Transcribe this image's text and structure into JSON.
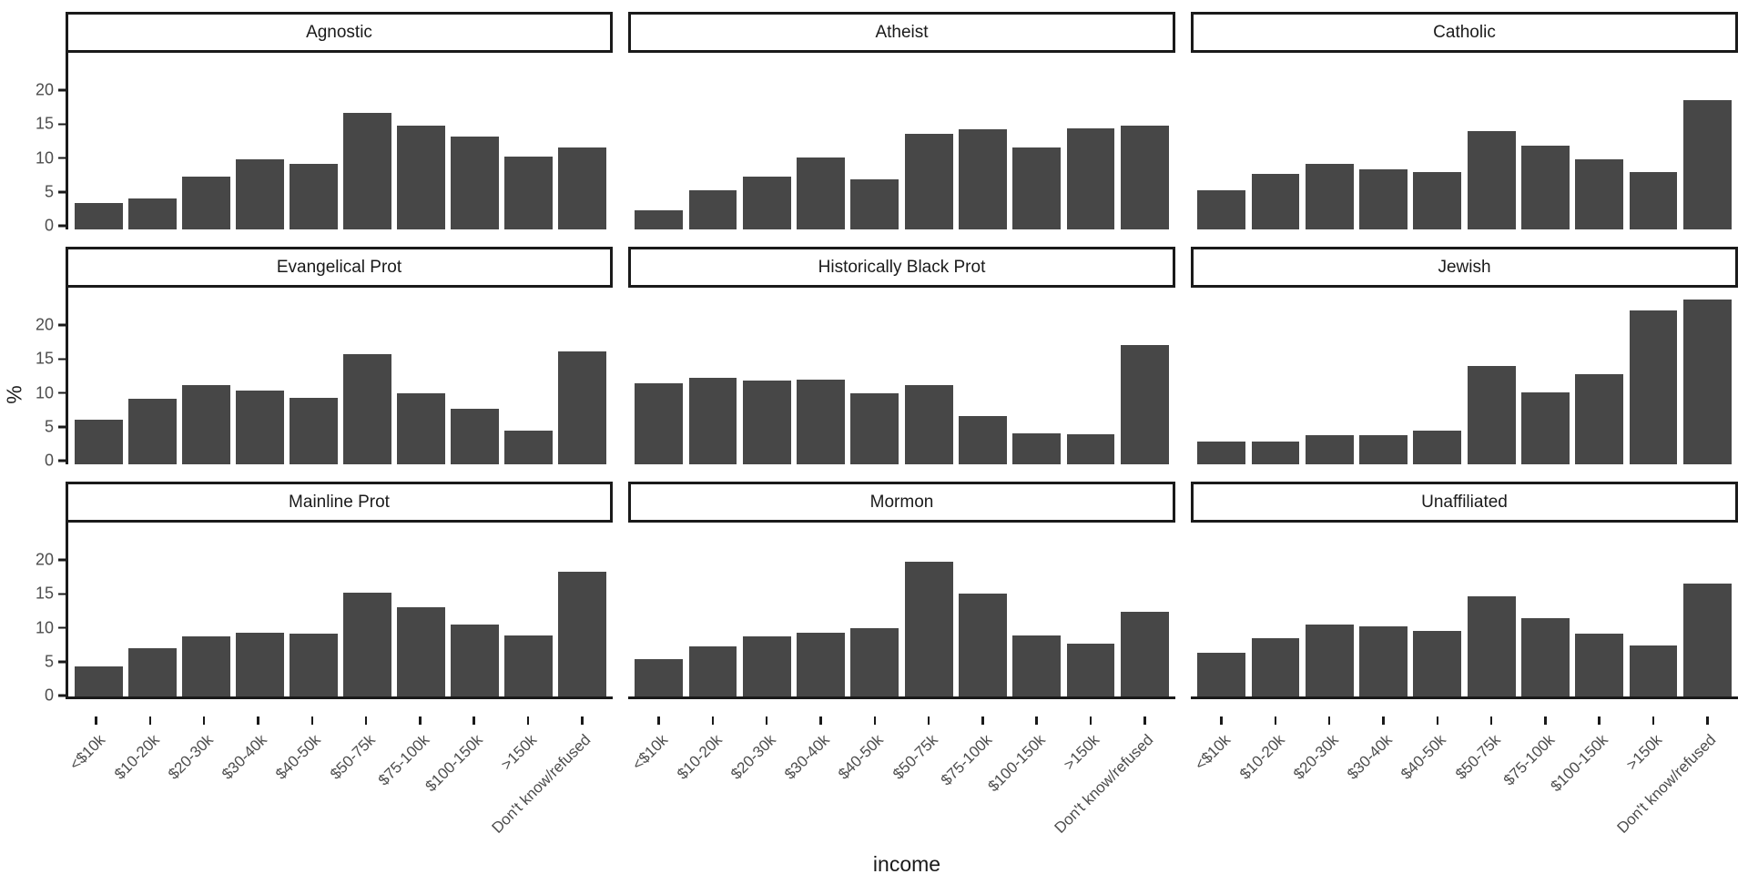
{
  "chart_data": {
    "type": "bar",
    "title": "",
    "xlabel": "income",
    "ylabel": "%",
    "categories": [
      "<$10k",
      "$10-20k",
      "$20-30k",
      "$30-40k",
      "$40-50k",
      "$50-75k",
      "$75-100k",
      "$100-150k",
      ">150k",
      "Don't know/refused"
    ],
    "yticks": [
      0,
      5,
      10,
      15,
      20
    ],
    "ylim": [
      0,
      25.5
    ],
    "grid": "off",
    "legend": "none",
    "facet_layout": {
      "rows": 3,
      "cols": 3
    },
    "bar_color": "#474747",
    "axis_color": "#1a1a1a",
    "tick_text_color": "#4d4d4d",
    "facets": [
      {
        "name": "Agnostic",
        "values": [
          3.3,
          4.1,
          7.3,
          9.8,
          9.2,
          16.6,
          14.8,
          13.2,
          10.2,
          11.6
        ]
      },
      {
        "name": "Atheist",
        "values": [
          2.3,
          5.2,
          7.2,
          10.1,
          6.8,
          13.6,
          14.2,
          11.5,
          14.4,
          14.8
        ]
      },
      {
        "name": "Catholic",
        "values": [
          5.2,
          7.7,
          9.1,
          8.3,
          7.9,
          13.9,
          11.8,
          9.8,
          7.9,
          18.5
        ]
      },
      {
        "name": "Evangelical Prot",
        "values": [
          6.1,
          9.2,
          11.2,
          10.4,
          9.3,
          15.7,
          10.0,
          7.6,
          4.4,
          16.1
        ]
      },
      {
        "name": "Historically Black Prot",
        "values": [
          11.4,
          12.2,
          11.8,
          11.9,
          9.9,
          11.2,
          6.6,
          4.1,
          3.9,
          17.0
        ]
      },
      {
        "name": "Jewish",
        "values": [
          2.8,
          2.8,
          3.7,
          3.7,
          4.4,
          13.9,
          10.1,
          12.8,
          22.1,
          23.8
        ]
      },
      {
        "name": "Mainline Prot",
        "values": [
          3.9,
          6.6,
          8.3,
          8.8,
          8.7,
          14.8,
          12.6,
          10.1,
          8.5,
          17.8
        ]
      },
      {
        "name": "Mormon",
        "values": [
          5.0,
          6.9,
          8.3,
          8.8,
          9.6,
          19.3,
          14.6,
          8.4,
          7.2,
          11.9
        ]
      },
      {
        "name": "Unaffiliated",
        "values": [
          5.9,
          8.1,
          10.1,
          9.8,
          9.2,
          14.2,
          11.0,
          8.7,
          7.0,
          16.1
        ]
      }
    ]
  }
}
